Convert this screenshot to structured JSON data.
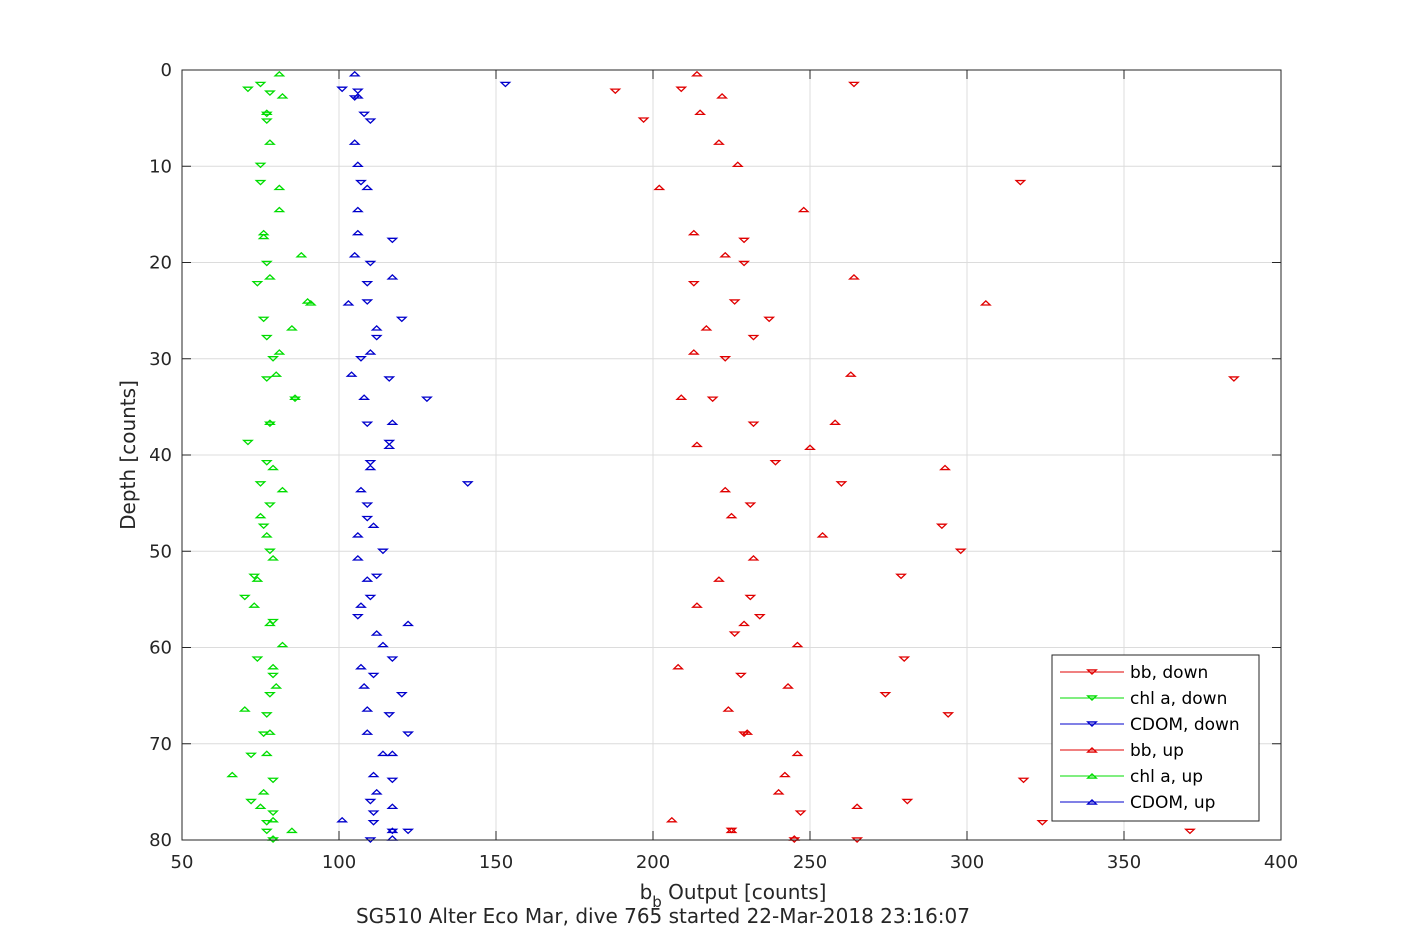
{
  "chart_data": {
    "type": "scatter",
    "title": "SG510 Alter Eco Mar, dive 765 started 22-Mar-2018 23:16:07",
    "xlabel_main": "b",
    "xlabel_sub": "b",
    "xlabel_rest": " Output [counts]",
    "ylabel": "Depth [counts]",
    "xlim": [
      50,
      400
    ],
    "ylim": [
      0,
      80
    ],
    "y_reversed": true,
    "grid": true,
    "legend_position": "lower-right",
    "xticks": [
      50,
      100,
      150,
      200,
      250,
      300,
      350,
      400
    ],
    "yticks": [
      0,
      10,
      20,
      30,
      40,
      50,
      60,
      70,
      80
    ],
    "series": [
      {
        "name": "bb, down",
        "color": "#e00000",
        "marker": "triangle-down",
        "points": [
          [
            264,
            1.5
          ],
          [
            188,
            2.2
          ],
          [
            209,
            2.0
          ],
          [
            197,
            5.2
          ],
          [
            317,
            11.7
          ],
          [
            229,
            17.7
          ],
          [
            229,
            20.1
          ],
          [
            213,
            22.2
          ],
          [
            226,
            24.1
          ],
          [
            237,
            25.9
          ],
          [
            232,
            27.8
          ],
          [
            223,
            30.0
          ],
          [
            385,
            32.1
          ],
          [
            219,
            34.2
          ],
          [
            232,
            36.8
          ],
          [
            239,
            40.8
          ],
          [
            260,
            43.0
          ],
          [
            231,
            45.2
          ],
          [
            292,
            47.4
          ],
          [
            298,
            50.0
          ],
          [
            279,
            52.6
          ],
          [
            231,
            54.8
          ],
          [
            234,
            56.8
          ],
          [
            226,
            58.6
          ],
          [
            280,
            61.2
          ],
          [
            228,
            62.9
          ],
          [
            274,
            64.9
          ],
          [
            294,
            67.0
          ],
          [
            229,
            69.0
          ],
          [
            318,
            73.8
          ],
          [
            281,
            76.0
          ],
          [
            247,
            77.2
          ],
          [
            324,
            78.2
          ],
          [
            371,
            79.1
          ],
          [
            225,
            79.0
          ],
          [
            265,
            80.0
          ],
          [
            245,
            80.0
          ]
        ]
      },
      {
        "name": "chl a, down",
        "color": "#00dd00",
        "marker": "triangle-down",
        "points": [
          [
            71,
            2.0
          ],
          [
            75,
            1.5
          ],
          [
            78,
            2.4
          ],
          [
            77,
            4.6
          ],
          [
            77,
            5.3
          ],
          [
            75,
            9.9
          ],
          [
            75,
            11.7
          ],
          [
            77,
            20.1
          ],
          [
            74,
            22.2
          ],
          [
            76,
            25.9
          ],
          [
            77,
            27.8
          ],
          [
            79,
            30.0
          ],
          [
            77,
            32.1
          ],
          [
            86,
            34.2
          ],
          [
            78,
            36.8
          ],
          [
            71,
            38.7
          ],
          [
            77,
            40.8
          ],
          [
            75,
            43.0
          ],
          [
            78,
            45.2
          ],
          [
            76,
            47.4
          ],
          [
            78,
            50.0
          ],
          [
            73,
            52.6
          ],
          [
            70,
            54.8
          ],
          [
            79,
            57.3
          ],
          [
            74,
            61.2
          ],
          [
            79,
            62.9
          ],
          [
            78,
            64.9
          ],
          [
            77,
            67.0
          ],
          [
            76,
            69.0
          ],
          [
            72,
            71.2
          ],
          [
            79,
            73.8
          ],
          [
            72,
            76.0
          ],
          [
            79,
            77.2
          ],
          [
            77,
            78.2
          ],
          [
            77,
            79.1
          ],
          [
            79,
            80.0
          ]
        ]
      },
      {
        "name": "CDOM, down",
        "color": "#0000cc",
        "marker": "triangle-down",
        "points": [
          [
            153,
            1.5
          ],
          [
            101,
            2.0
          ],
          [
            105,
            2.9
          ],
          [
            106,
            2.2
          ],
          [
            108,
            4.6
          ],
          [
            110,
            5.3
          ],
          [
            107,
            11.7
          ],
          [
            117,
            17.7
          ],
          [
            110,
            20.1
          ],
          [
            109,
            22.2
          ],
          [
            109,
            24.1
          ],
          [
            120,
            25.9
          ],
          [
            112,
            27.8
          ],
          [
            107,
            30.0
          ],
          [
            116,
            32.1
          ],
          [
            128,
            34.2
          ],
          [
            109,
            36.8
          ],
          [
            116,
            38.7
          ],
          [
            110,
            40.8
          ],
          [
            141,
            43.0
          ],
          [
            109,
            45.2
          ],
          [
            109,
            46.6
          ],
          [
            114,
            50.0
          ],
          [
            112,
            52.6
          ],
          [
            110,
            54.8
          ],
          [
            106,
            56.8
          ],
          [
            117,
            61.2
          ],
          [
            111,
            62.9
          ],
          [
            120,
            64.9
          ],
          [
            116,
            67.0
          ],
          [
            122,
            69.0
          ],
          [
            117,
            73.8
          ],
          [
            110,
            76.0
          ],
          [
            111,
            77.2
          ],
          [
            111,
            78.2
          ],
          [
            122,
            79.1
          ],
          [
            117,
            79.1
          ],
          [
            110,
            80.0
          ]
        ]
      },
      {
        "name": "bb, up",
        "color": "#e00000",
        "marker": "triangle-up",
        "points": [
          [
            214,
            0.4
          ],
          [
            222,
            2.7
          ],
          [
            215,
            4.4
          ],
          [
            221,
            7.5
          ],
          [
            227,
            9.8
          ],
          [
            202,
            12.2
          ],
          [
            248,
            14.5
          ],
          [
            213,
            16.9
          ],
          [
            223,
            19.2
          ],
          [
            264,
            21.5
          ],
          [
            306,
            24.2
          ],
          [
            217,
            26.8
          ],
          [
            213,
            29.3
          ],
          [
            263,
            31.6
          ],
          [
            209,
            34.0
          ],
          [
            258,
            36.6
          ],
          [
            214,
            38.9
          ],
          [
            250,
            39.2
          ],
          [
            293,
            41.3
          ],
          [
            223,
            43.6
          ],
          [
            225,
            46.3
          ],
          [
            254,
            48.3
          ],
          [
            232,
            50.7
          ],
          [
            221,
            52.9
          ],
          [
            214,
            55.6
          ],
          [
            229,
            57.5
          ],
          [
            246,
            59.7
          ],
          [
            208,
            62.0
          ],
          [
            243,
            64.0
          ],
          [
            224,
            66.4
          ],
          [
            230,
            68.8
          ],
          [
            246,
            71.0
          ],
          [
            242,
            73.2
          ],
          [
            240,
            75.0
          ],
          [
            265,
            76.5
          ],
          [
            206,
            77.9
          ],
          [
            225,
            79.0
          ],
          [
            245,
            79.8
          ]
        ]
      },
      {
        "name": "chl a, up",
        "color": "#00dd00",
        "marker": "triangle-up",
        "points": [
          [
            81,
            0.4
          ],
          [
            82,
            2.7
          ],
          [
            77,
            4.4
          ],
          [
            78,
            7.5
          ],
          [
            81,
            12.2
          ],
          [
            81,
            14.5
          ],
          [
            76,
            16.9
          ],
          [
            76,
            17.3
          ],
          [
            88,
            19.2
          ],
          [
            78,
            21.5
          ],
          [
            90,
            24.0
          ],
          [
            91,
            24.2
          ],
          [
            85,
            26.8
          ],
          [
            81,
            29.3
          ],
          [
            80,
            31.6
          ],
          [
            86,
            34.0
          ],
          [
            78,
            36.6
          ],
          [
            79,
            41.3
          ],
          [
            82,
            43.6
          ],
          [
            75,
            46.3
          ],
          [
            77,
            48.3
          ],
          [
            79,
            50.7
          ],
          [
            74,
            52.9
          ],
          [
            73,
            55.6
          ],
          [
            78,
            57.5
          ],
          [
            82,
            59.7
          ],
          [
            79,
            62.0
          ],
          [
            80,
            64.0
          ],
          [
            70,
            66.4
          ],
          [
            78,
            68.8
          ],
          [
            77,
            71.0
          ],
          [
            66,
            73.2
          ],
          [
            76,
            75.0
          ],
          [
            75,
            76.5
          ],
          [
            79,
            77.9
          ],
          [
            85,
            79.0
          ],
          [
            79,
            79.8
          ]
        ]
      },
      {
        "name": "CDOM, up",
        "color": "#0000cc",
        "marker": "triangle-up",
        "points": [
          [
            105,
            0.4
          ],
          [
            106,
            2.7
          ],
          [
            105,
            7.5
          ],
          [
            106,
            9.8
          ],
          [
            109,
            12.2
          ],
          [
            106,
            14.5
          ],
          [
            106,
            16.9
          ],
          [
            105,
            19.2
          ],
          [
            117,
            21.5
          ],
          [
            103,
            24.2
          ],
          [
            112,
            26.8
          ],
          [
            110,
            29.3
          ],
          [
            104,
            31.6
          ],
          [
            108,
            34.0
          ],
          [
            117,
            36.6
          ],
          [
            116,
            39.1
          ],
          [
            110,
            41.3
          ],
          [
            107,
            43.6
          ],
          [
            111,
            47.3
          ],
          [
            106,
            48.3
          ],
          [
            106,
            50.7
          ],
          [
            109,
            52.9
          ],
          [
            107,
            55.6
          ],
          [
            122,
            57.5
          ],
          [
            112,
            58.5
          ],
          [
            114,
            59.7
          ],
          [
            107,
            62.0
          ],
          [
            108,
            64.0
          ],
          [
            109,
            66.4
          ],
          [
            109,
            68.8
          ],
          [
            114,
            71.0
          ],
          [
            117,
            71.0
          ],
          [
            111,
            73.2
          ],
          [
            112,
            75.0
          ],
          [
            117,
            76.5
          ],
          [
            101,
            77.9
          ],
          [
            117,
            79.0
          ],
          [
            117,
            79.8
          ]
        ]
      }
    ]
  }
}
